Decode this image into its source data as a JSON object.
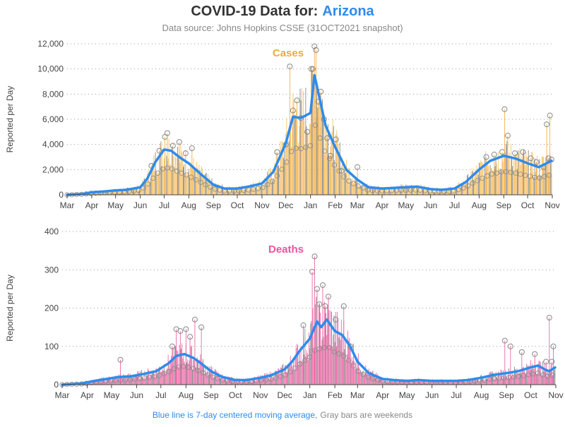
{
  "header": {
    "title_prefix": "COVID-19 Data for:",
    "title_state": "Arizona",
    "subtitle": "Data source: Johns Hopkins CSSE (31OCT2021 snapshot)"
  },
  "footer": {
    "ma_note": "Blue line is 7-day centered moving average,",
    "weekend_note": "Gray bars are weekends"
  },
  "colors": {
    "title": "#333333",
    "state": "#2e8bec",
    "subtitle": "#888888",
    "cases": "#f2a93b",
    "cases_bar": "#f6c46a",
    "deaths": "#e8559c",
    "deaths_bar": "#ee6fab",
    "weekend": "#8c8c8c",
    "moving_avg": "#2e8bec",
    "grid": "#999999",
    "axis": "#444444",
    "marker": "#888888"
  },
  "chart_data": [
    {
      "type": "bar",
      "annotation": "Cases",
      "ylabel": "Reported per Day",
      "xlabel": "",
      "ylim": [
        0,
        12000
      ],
      "yticks": [
        "0",
        "2,000",
        "4,000",
        "6,000",
        "8,000",
        "10,000",
        "12,000"
      ],
      "ytick_values": [
        0,
        2000,
        4000,
        6000,
        8000,
        10000,
        12000
      ],
      "grid": true,
      "x_start": "2020-03-01",
      "x_end": "2021-11-01",
      "xtick_labels": [
        "Mar",
        "Apr",
        "May",
        "Jun",
        "Jul",
        "Aug",
        "Sep",
        "Oct",
        "Nov",
        "Dec",
        "Jan",
        "Feb",
        "Mar",
        "Apr",
        "May",
        "Jun",
        "Jul",
        "Aug",
        "Sep",
        "Oct",
        "Nov"
      ],
      "xtick_dates": [
        "2020-03-01",
        "2020-04-01",
        "2020-05-01",
        "2020-06-01",
        "2020-07-01",
        "2020-08-01",
        "2020-09-01",
        "2020-10-01",
        "2020-11-01",
        "2020-12-01",
        "2021-01-01",
        "2021-02-01",
        "2021-03-01",
        "2021-04-01",
        "2021-05-01",
        "2021-06-01",
        "2021-07-01",
        "2021-08-01",
        "2021-09-01",
        "2021-10-01",
        "2021-11-01"
      ],
      "moving_average": {
        "dates": [
          "2020-03-01",
          "2020-03-20",
          "2020-04-01",
          "2020-04-15",
          "2020-05-01",
          "2020-05-15",
          "2020-06-01",
          "2020-06-10",
          "2020-06-20",
          "2020-07-01",
          "2020-07-10",
          "2020-07-20",
          "2020-08-01",
          "2020-08-15",
          "2020-09-01",
          "2020-09-15",
          "2020-10-01",
          "2020-10-15",
          "2020-11-01",
          "2020-11-15",
          "2020-12-01",
          "2020-12-10",
          "2020-12-20",
          "2021-01-01",
          "2021-01-06",
          "2021-01-12",
          "2021-01-20",
          "2021-02-01",
          "2021-02-15",
          "2021-03-01",
          "2021-03-15",
          "2021-04-01",
          "2021-04-15",
          "2021-05-01",
          "2021-05-15",
          "2021-06-01",
          "2021-06-15",
          "2021-07-01",
          "2021-07-15",
          "2021-08-01",
          "2021-08-15",
          "2021-09-01",
          "2021-09-15",
          "2021-10-01",
          "2021-10-15",
          "2021-10-31"
        ],
        "values": [
          0,
          60,
          200,
          260,
          350,
          400,
          600,
          1300,
          2600,
          3600,
          3500,
          3000,
          2500,
          1700,
          800,
          500,
          500,
          650,
          900,
          1800,
          4100,
          6200,
          6100,
          6500,
          9500,
          7800,
          5500,
          3800,
          2000,
          1200,
          600,
          500,
          550,
          600,
          650,
          450,
          400,
          500,
          1000,
          2000,
          2700,
          3100,
          2900,
          2500,
          2200,
          2700
        ]
      },
      "daily_points": {
        "dates": [
          "2020-06-15",
          "2020-06-25",
          "2020-07-02",
          "2020-07-05",
          "2020-07-12",
          "2020-07-20",
          "2020-07-28",
          "2020-08-05",
          "2020-11-20",
          "2020-12-01",
          "2020-12-06",
          "2020-12-10",
          "2020-12-15",
          "2020-12-20",
          "2020-12-28",
          "2021-01-02",
          "2021-01-04",
          "2021-01-06",
          "2021-01-08",
          "2021-01-11",
          "2021-01-14",
          "2021-01-18",
          "2021-01-22",
          "2021-01-26",
          "2021-02-02",
          "2021-02-09",
          "2021-03-01",
          "2021-08-10",
          "2021-08-20",
          "2021-08-30",
          "2021-09-02",
          "2021-09-06",
          "2021-09-15",
          "2021-09-25",
          "2021-10-05",
          "2021-10-12",
          "2021-10-21",
          "2021-10-25",
          "2021-10-27",
          "2021-10-29",
          "2021-10-31"
        ],
        "values": [
          2300,
          3500,
          4600,
          4900,
          3900,
          4200,
          3300,
          3700,
          3400,
          4000,
          10200,
          6700,
          7500,
          6100,
          5000,
          10000,
          10000,
          11800,
          11500,
          7400,
          8200,
          6000,
          4500,
          3100,
          4400,
          1900,
          2200,
          3000,
          3200,
          3400,
          6800,
          4700,
          3300,
          3400,
          2900,
          2600,
          2200,
          5600,
          2900,
          6300,
          2800
        ]
      }
    },
    {
      "type": "bar",
      "annotation": "Deaths",
      "ylabel": "Reported per Day",
      "xlabel": "",
      "ylim": [
        0,
        400
      ],
      "yticks": [
        "0",
        "100",
        "200",
        "300",
        "400"
      ],
      "ytick_values": [
        0,
        100,
        200,
        300,
        400
      ],
      "grid": true,
      "x_start": "2020-03-01",
      "x_end": "2021-11-01",
      "xtick_labels": [
        "Mar",
        "Apr",
        "May",
        "Jun",
        "Jul",
        "Aug",
        "Sep",
        "Oct",
        "Nov",
        "Dec",
        "Jan",
        "Feb",
        "Mar",
        "Apr",
        "May",
        "Jun",
        "Jul",
        "Aug",
        "Sep",
        "Oct",
        "Nov"
      ],
      "xtick_dates": [
        "2020-03-01",
        "2020-04-01",
        "2020-05-01",
        "2020-06-01",
        "2020-07-01",
        "2020-08-01",
        "2020-09-01",
        "2020-10-01",
        "2020-11-01",
        "2020-12-01",
        "2021-01-01",
        "2021-02-01",
        "2021-03-01",
        "2021-04-01",
        "2021-05-01",
        "2021-06-01",
        "2021-07-01",
        "2021-08-01",
        "2021-09-01",
        "2021-10-01",
        "2021-11-01"
      ],
      "moving_average": {
        "dates": [
          "2020-03-01",
          "2020-03-25",
          "2020-04-10",
          "2020-04-25",
          "2020-05-10",
          "2020-05-25",
          "2020-06-10",
          "2020-06-25",
          "2020-07-10",
          "2020-07-20",
          "2020-07-30",
          "2020-08-10",
          "2020-08-20",
          "2020-09-01",
          "2020-09-15",
          "2020-10-01",
          "2020-10-15",
          "2020-11-01",
          "2020-11-15",
          "2020-12-01",
          "2020-12-10",
          "2020-12-20",
          "2021-01-01",
          "2021-01-10",
          "2021-01-15",
          "2021-01-22",
          "2021-02-01",
          "2021-02-10",
          "2021-02-20",
          "2021-03-01",
          "2021-03-15",
          "2021-04-01",
          "2021-04-15",
          "2021-05-01",
          "2021-05-15",
          "2021-06-01",
          "2021-06-15",
          "2021-07-01",
          "2021-07-15",
          "2021-08-01",
          "2021-08-15",
          "2021-09-01",
          "2021-09-15",
          "2021-10-01",
          "2021-10-10",
          "2021-10-18",
          "2021-10-24",
          "2021-10-31"
        ],
        "values": [
          0,
          3,
          10,
          15,
          20,
          22,
          28,
          35,
          55,
          75,
          80,
          70,
          55,
          35,
          20,
          12,
          12,
          18,
          25,
          40,
          60,
          90,
          120,
          165,
          150,
          170,
          140,
          130,
          100,
          60,
          30,
          15,
          12,
          10,
          12,
          10,
          10,
          10,
          12,
          18,
          25,
          30,
          35,
          45,
          50,
          40,
          35,
          45
        ]
      },
      "daily_points": {
        "dates": [
          "2020-05-12",
          "2020-07-15",
          "2020-07-20",
          "2020-07-25",
          "2020-08-01",
          "2020-08-06",
          "2020-08-12",
          "2020-08-20",
          "2020-12-24",
          "2021-01-04",
          "2021-01-07",
          "2021-01-10",
          "2021-01-13",
          "2021-01-17",
          "2021-01-20",
          "2021-01-24",
          "2021-02-02",
          "2021-02-12",
          "2021-02-20",
          "2021-08-30",
          "2021-09-06",
          "2021-09-20",
          "2021-10-06",
          "2021-10-20",
          "2021-10-24",
          "2021-10-27",
          "2021-10-29"
        ],
        "values": [
          65,
          100,
          145,
          140,
          145,
          125,
          170,
          150,
          155,
          295,
          335,
          250,
          210,
          260,
          205,
          230,
          170,
          205,
          100,
          115,
          100,
          85,
          80,
          60,
          175,
          60,
          100
        ]
      }
    }
  ]
}
